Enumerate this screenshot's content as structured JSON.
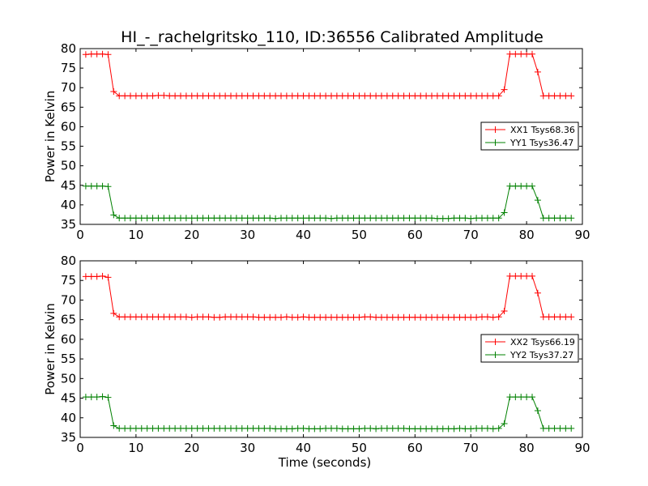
{
  "title": "HI_-_rachelgritsko_110, ID:36556 Calibrated Amplitude",
  "chart_data": [
    {
      "type": "line",
      "ylabel": "Power in Kelvin",
      "xlabel": "",
      "xlim": [
        0,
        90
      ],
      "ylim": [
        35,
        80
      ],
      "xticks": [
        "0",
        "10",
        "20",
        "30",
        "40",
        "50",
        "60",
        "70",
        "80",
        "90"
      ],
      "yticks": [
        "35",
        "40",
        "45",
        "50",
        "55",
        "60",
        "65",
        "70",
        "75",
        "80"
      ],
      "legend_placement": "center-right",
      "series": [
        {
          "name": "XX1 Tsys68.36",
          "color": "#ff0000",
          "x": [
            1,
            2,
            3,
            4,
            5,
            6,
            7,
            8,
            9,
            10,
            11,
            12,
            13,
            14,
            15,
            16,
            17,
            18,
            19,
            20,
            21,
            22,
            23,
            24,
            25,
            26,
            27,
            28,
            29,
            30,
            31,
            32,
            33,
            34,
            35,
            36,
            37,
            38,
            39,
            40,
            41,
            42,
            43,
            44,
            45,
            46,
            47,
            48,
            49,
            50,
            51,
            52,
            53,
            54,
            55,
            56,
            57,
            58,
            59,
            60,
            61,
            62,
            63,
            64,
            65,
            66,
            67,
            68,
            69,
            70,
            71,
            72,
            73,
            74,
            75,
            76,
            77,
            78,
            79,
            80,
            81,
            82,
            83,
            84,
            85,
            86,
            87,
            88
          ],
          "values": [
            78.5,
            78.6,
            78.6,
            78.6,
            78.5,
            69.0,
            67.9,
            67.9,
            67.9,
            67.9,
            67.9,
            67.9,
            67.9,
            68.0,
            68.0,
            67.9,
            67.9,
            67.9,
            67.9,
            67.9,
            67.9,
            67.9,
            67.9,
            67.9,
            67.9,
            67.9,
            67.9,
            67.9,
            67.9,
            67.9,
            67.9,
            67.9,
            67.9,
            67.9,
            67.9,
            67.9,
            67.9,
            67.9,
            67.9,
            67.9,
            67.9,
            67.9,
            67.9,
            67.9,
            67.9,
            67.9,
            67.9,
            67.9,
            67.9,
            67.9,
            67.9,
            67.9,
            67.9,
            67.9,
            67.9,
            67.9,
            67.9,
            67.9,
            67.9,
            67.9,
            67.9,
            67.9,
            67.9,
            67.9,
            67.9,
            67.9,
            67.9,
            67.9,
            67.9,
            67.9,
            67.9,
            67.9,
            67.9,
            67.9,
            67.9,
            69.5,
            78.6,
            78.6,
            78.6,
            78.6,
            78.6,
            74.0,
            67.9,
            67.9,
            67.9,
            67.9,
            67.9,
            67.9
          ]
        },
        {
          "name": "YY1 Tsys36.47",
          "color": "#008000",
          "x": [
            1,
            2,
            3,
            4,
            5,
            6,
            7,
            8,
            9,
            10,
            11,
            12,
            13,
            14,
            15,
            16,
            17,
            18,
            19,
            20,
            21,
            22,
            23,
            24,
            25,
            26,
            27,
            28,
            29,
            30,
            31,
            32,
            33,
            34,
            35,
            36,
            37,
            38,
            39,
            40,
            41,
            42,
            43,
            44,
            45,
            46,
            47,
            48,
            49,
            50,
            51,
            52,
            53,
            54,
            55,
            56,
            57,
            58,
            59,
            60,
            61,
            62,
            63,
            64,
            65,
            66,
            67,
            68,
            69,
            70,
            71,
            72,
            73,
            74,
            75,
            76,
            77,
            78,
            79,
            80,
            81,
            82,
            83,
            84,
            85,
            86,
            87,
            88
          ],
          "values": [
            44.8,
            44.8,
            44.8,
            44.8,
            44.7,
            37.4,
            36.6,
            36.6,
            36.6,
            36.6,
            36.6,
            36.6,
            36.6,
            36.6,
            36.6,
            36.6,
            36.6,
            36.6,
            36.6,
            36.6,
            36.6,
            36.6,
            36.6,
            36.6,
            36.6,
            36.6,
            36.6,
            36.6,
            36.6,
            36.6,
            36.6,
            36.6,
            36.6,
            36.6,
            36.5,
            36.6,
            36.6,
            36.6,
            36.6,
            36.6,
            36.6,
            36.6,
            36.6,
            36.6,
            36.5,
            36.6,
            36.6,
            36.6,
            36.6,
            36.6,
            36.6,
            36.6,
            36.6,
            36.6,
            36.6,
            36.6,
            36.6,
            36.6,
            36.6,
            36.6,
            36.6,
            36.6,
            36.6,
            36.5,
            36.5,
            36.5,
            36.6,
            36.6,
            36.6,
            36.5,
            36.6,
            36.6,
            36.6,
            36.6,
            36.6,
            38.0,
            44.8,
            44.8,
            44.8,
            44.8,
            44.8,
            41.2,
            36.6,
            36.6,
            36.6,
            36.6,
            36.6,
            36.6
          ]
        }
      ]
    },
    {
      "type": "line",
      "ylabel": "Power in Kelvin",
      "xlabel": "Time (seconds)",
      "xlim": [
        0,
        90
      ],
      "ylim": [
        35,
        80
      ],
      "xticks": [
        "0",
        "10",
        "20",
        "30",
        "40",
        "50",
        "60",
        "70",
        "80",
        "90"
      ],
      "yticks": [
        "35",
        "40",
        "45",
        "50",
        "55",
        "60",
        "65",
        "70",
        "75",
        "80"
      ],
      "legend_placement": "center-right",
      "series": [
        {
          "name": "XX2 Tsys66.19",
          "color": "#ff0000",
          "x": [
            1,
            2,
            3,
            4,
            5,
            6,
            7,
            8,
            9,
            10,
            11,
            12,
            13,
            14,
            15,
            16,
            17,
            18,
            19,
            20,
            21,
            22,
            23,
            24,
            25,
            26,
            27,
            28,
            29,
            30,
            31,
            32,
            33,
            34,
            35,
            36,
            37,
            38,
            39,
            40,
            41,
            42,
            43,
            44,
            45,
            46,
            47,
            48,
            49,
            50,
            51,
            52,
            53,
            54,
            55,
            56,
            57,
            58,
            59,
            60,
            61,
            62,
            63,
            64,
            65,
            66,
            67,
            68,
            69,
            70,
            71,
            72,
            73,
            74,
            75,
            76,
            77,
            78,
            79,
            80,
            81,
            82,
            83,
            84,
            85,
            86,
            87,
            88
          ],
          "values": [
            76.0,
            76.0,
            76.0,
            76.1,
            75.8,
            66.6,
            65.7,
            65.7,
            65.7,
            65.7,
            65.7,
            65.7,
            65.7,
            65.7,
            65.7,
            65.7,
            65.7,
            65.7,
            65.7,
            65.6,
            65.7,
            65.7,
            65.7,
            65.6,
            65.6,
            65.7,
            65.7,
            65.7,
            65.7,
            65.7,
            65.7,
            65.6,
            65.6,
            65.6,
            65.6,
            65.6,
            65.7,
            65.6,
            65.6,
            65.7,
            65.6,
            65.6,
            65.6,
            65.6,
            65.6,
            65.6,
            65.6,
            65.6,
            65.6,
            65.6,
            65.7,
            65.7,
            65.6,
            65.6,
            65.6,
            65.6,
            65.6,
            65.6,
            65.6,
            65.6,
            65.6,
            65.6,
            65.6,
            65.6,
            65.6,
            65.6,
            65.6,
            65.6,
            65.6,
            65.6,
            65.6,
            65.7,
            65.7,
            65.6,
            65.7,
            67.2,
            76.1,
            76.1,
            76.1,
            76.1,
            76.1,
            71.8,
            65.7,
            65.7,
            65.7,
            65.7,
            65.7,
            65.7
          ]
        },
        {
          "name": "YY2 Tsys37.27",
          "color": "#008000",
          "x": [
            1,
            2,
            3,
            4,
            5,
            6,
            7,
            8,
            9,
            10,
            11,
            12,
            13,
            14,
            15,
            16,
            17,
            18,
            19,
            20,
            21,
            22,
            23,
            24,
            25,
            26,
            27,
            28,
            29,
            30,
            31,
            32,
            33,
            34,
            35,
            36,
            37,
            38,
            39,
            40,
            41,
            42,
            43,
            44,
            45,
            46,
            47,
            48,
            49,
            50,
            51,
            52,
            53,
            54,
            55,
            56,
            57,
            58,
            59,
            60,
            61,
            62,
            63,
            64,
            65,
            66,
            67,
            68,
            69,
            70,
            71,
            72,
            73,
            74,
            75,
            76,
            77,
            78,
            79,
            80,
            81,
            82,
            83,
            84,
            85,
            86,
            87,
            88
          ],
          "values": [
            45.3,
            45.3,
            45.3,
            45.4,
            45.2,
            38.0,
            37.3,
            37.3,
            37.3,
            37.3,
            37.3,
            37.3,
            37.3,
            37.3,
            37.3,
            37.3,
            37.3,
            37.3,
            37.3,
            37.3,
            37.3,
            37.3,
            37.3,
            37.3,
            37.3,
            37.3,
            37.3,
            37.3,
            37.3,
            37.3,
            37.3,
            37.3,
            37.3,
            37.3,
            37.2,
            37.2,
            37.2,
            37.2,
            37.3,
            37.3,
            37.2,
            37.2,
            37.2,
            37.3,
            37.3,
            37.3,
            37.2,
            37.2,
            37.2,
            37.2,
            37.3,
            37.3,
            37.2,
            37.3,
            37.3,
            37.3,
            37.3,
            37.3,
            37.2,
            37.2,
            37.2,
            37.2,
            37.2,
            37.2,
            37.2,
            37.2,
            37.2,
            37.3,
            37.2,
            37.2,
            37.3,
            37.3,
            37.3,
            37.2,
            37.3,
            38.5,
            45.3,
            45.3,
            45.3,
            45.3,
            45.3,
            41.8,
            37.3,
            37.3,
            37.3,
            37.3,
            37.3,
            37.3
          ]
        }
      ]
    }
  ]
}
